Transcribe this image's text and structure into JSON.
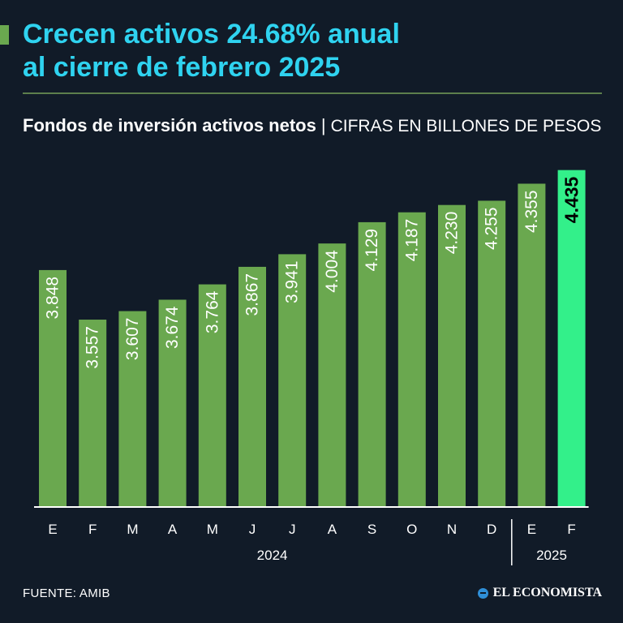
{
  "header": {
    "headline_line1": "Crecen activos 24.68% anual",
    "headline_line2": "al cierre de febrero 2025",
    "subtitle_bold": "Fondos de inversión activos netos",
    "subtitle_separator": "|",
    "subtitle_units": "CIFRAS EN BILLONES DE PESOS"
  },
  "colors": {
    "background": "#111b28",
    "headline": "#2fd3f0",
    "bar": "#6aa84f",
    "bar_highlight": "#33f08a",
    "text": "#ffffff"
  },
  "chart_data": {
    "type": "bar",
    "title": "Fondos de inversión activos netos",
    "ylabel": "Cifras en billones de pesos",
    "xlabel": "",
    "ylim": [
      0,
      4.5
    ],
    "categories": [
      "E",
      "F",
      "M",
      "A",
      "M",
      "J",
      "J",
      "A",
      "S",
      "O",
      "N",
      "D",
      "E",
      "F"
    ],
    "values": [
      3.848,
      3.557,
      3.607,
      3.674,
      3.764,
      3.867,
      3.941,
      4.004,
      4.129,
      4.187,
      4.23,
      4.255,
      4.355,
      4.435
    ],
    "labels": [
      "3.848",
      "3.557",
      "3.607",
      "3.674",
      "3.764",
      "3.867",
      "3.941",
      "4.004",
      "4.129",
      "4.187",
      "4.230",
      "4.255",
      "4.355",
      "4.435"
    ],
    "highlight_index": 13,
    "year_groups": [
      {
        "label": "2024",
        "start": 0,
        "end": 11
      },
      {
        "label": "2025",
        "start": 12,
        "end": 13
      }
    ]
  },
  "footer": {
    "source": "FUENTE: AMIB",
    "brand": "EL ECONOMISTA"
  }
}
